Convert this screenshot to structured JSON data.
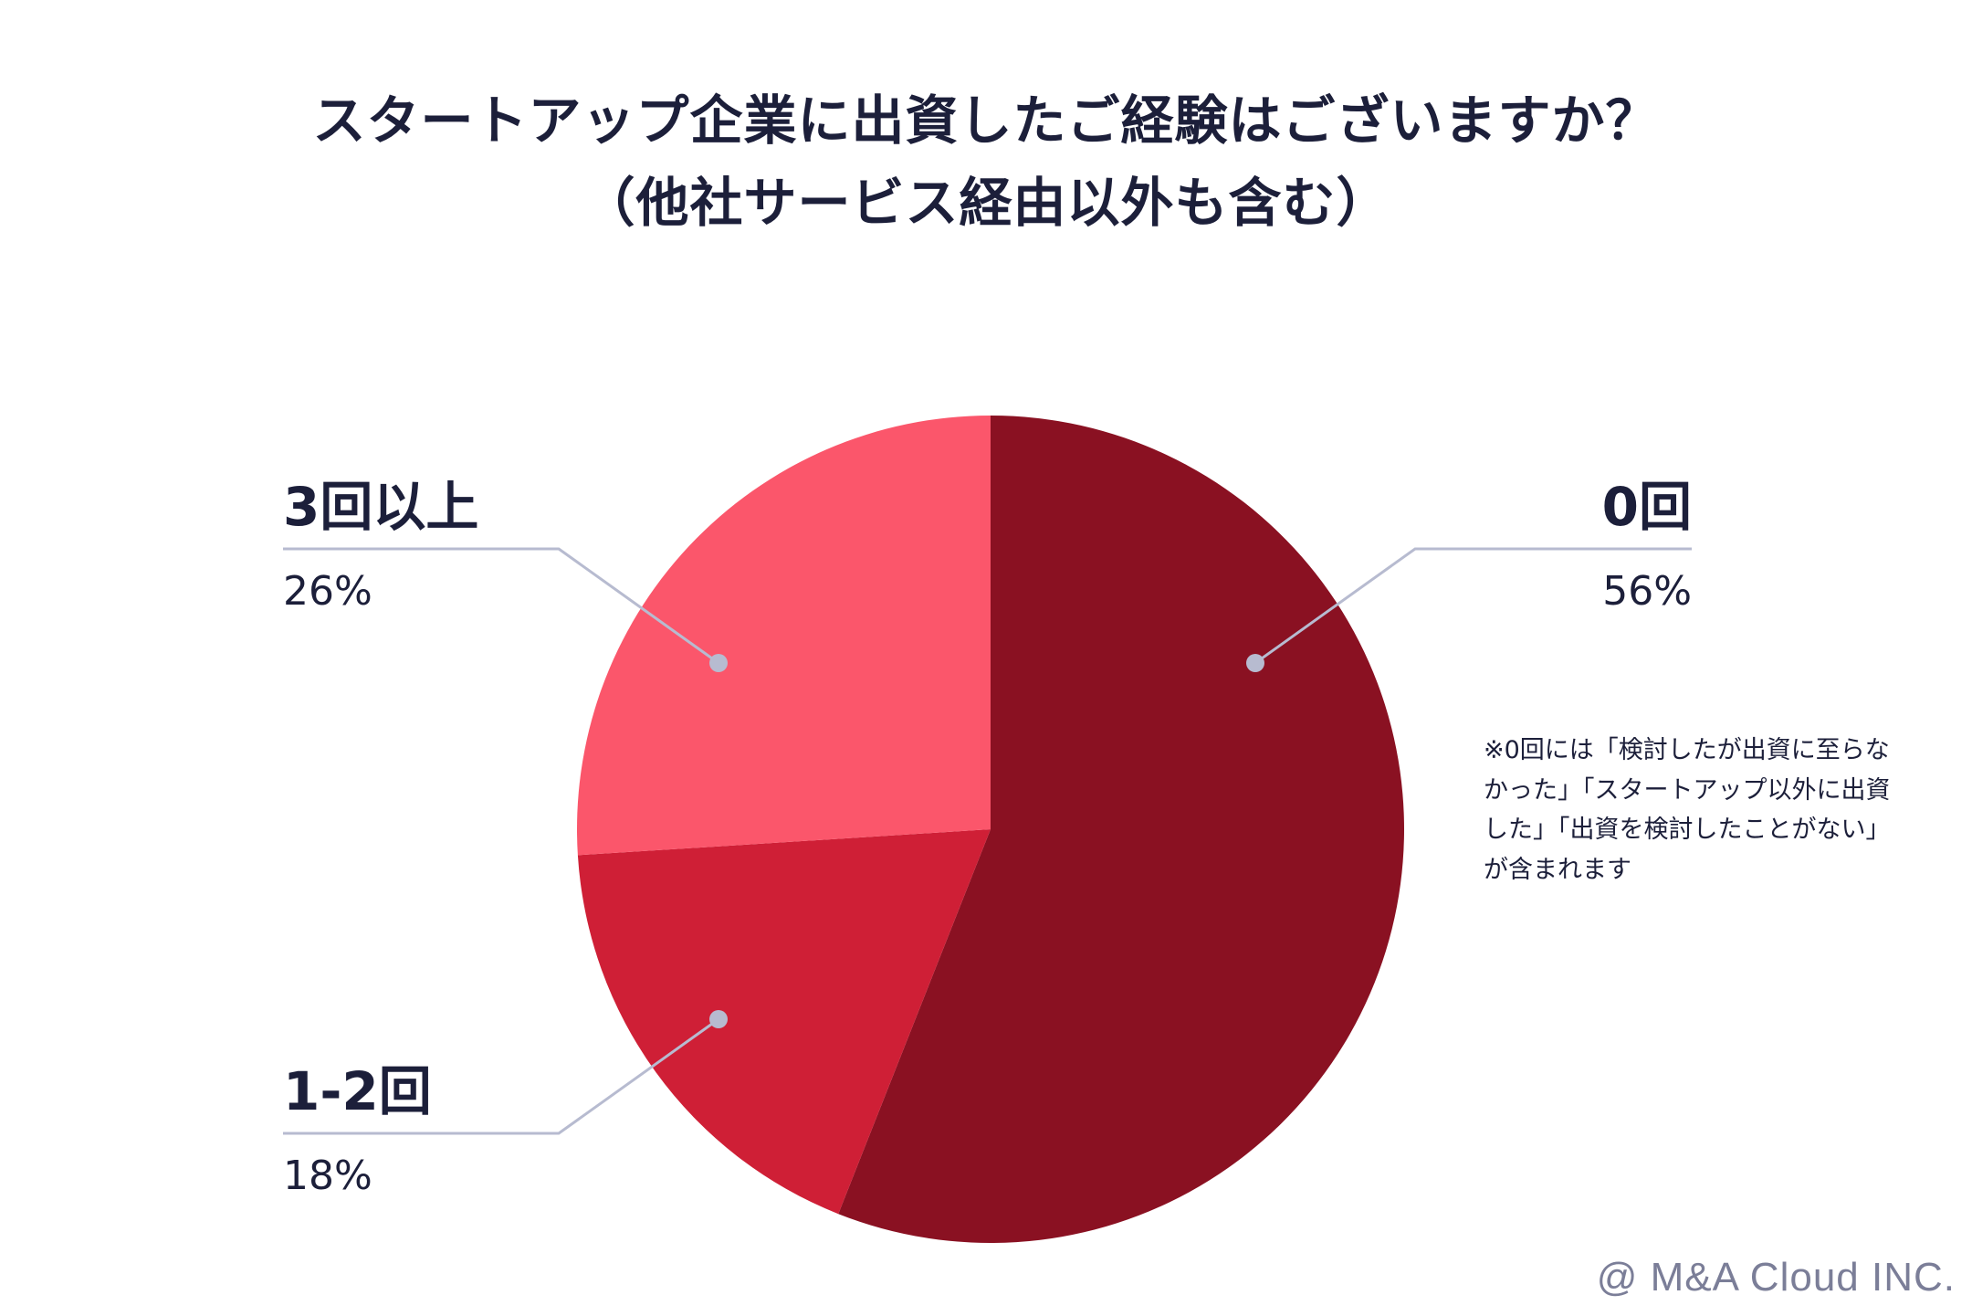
{
  "chart_data": {
    "type": "pie",
    "title": "スタートアップ企業に出資したご経験はございますか？",
    "subtitle": "（他社サービス経由以外も含む）",
    "slices": [
      {
        "label": "0回",
        "value": 56,
        "value_label": "56%",
        "color": "#8a1122"
      },
      {
        "label": "1-2回",
        "value": 18,
        "value_label": "18%",
        "color": "#cf1f36"
      },
      {
        "label": "3回以上",
        "value": 26,
        "value_label": "26%",
        "color": "#fb566b"
      }
    ],
    "note": "※0回には「検討したが出資に至らなかった」「スタートアップ以外に出資した」「出資を検討したことがない」が含まれます"
  },
  "footer": {
    "copyright": "@ M&A Cloud INC."
  },
  "colors": {
    "text": "#1c1f3a",
    "leader": "#b7bbd0",
    "copyright": "#7b7e98"
  }
}
